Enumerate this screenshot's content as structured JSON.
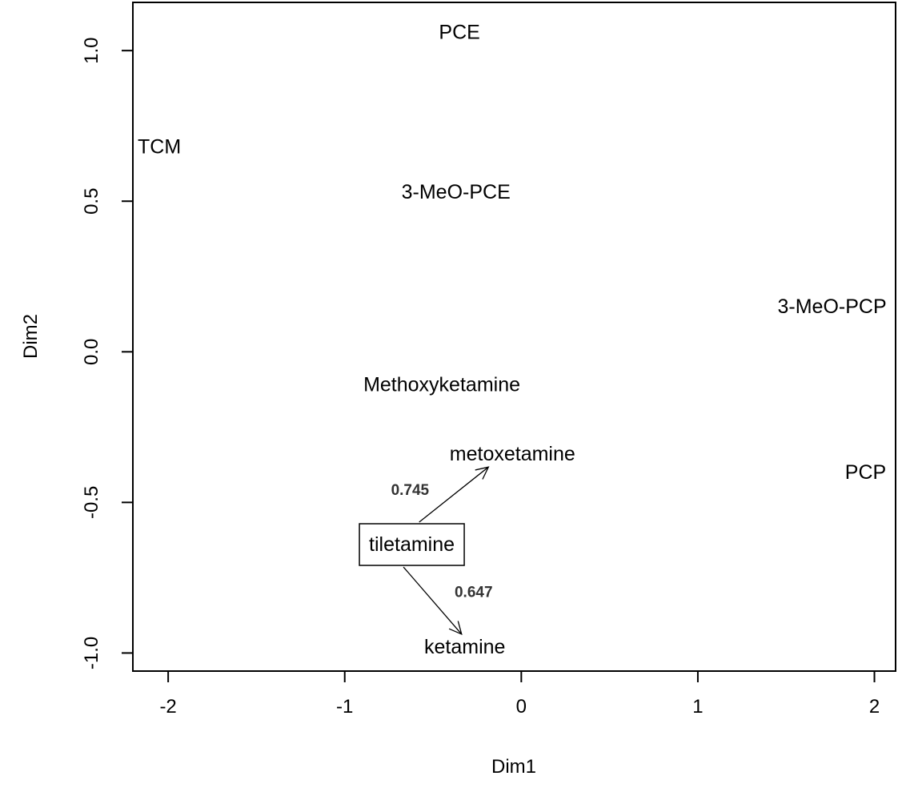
{
  "chart_data": {
    "type": "scatter",
    "xlabel": "Dim1",
    "ylabel": "Dim2",
    "xlim": [
      -2.2,
      2.12
    ],
    "ylim": [
      -1.06,
      1.16
    ],
    "xticks": [
      -2,
      -1,
      0,
      1,
      2
    ],
    "yticks": [
      -1.0,
      -0.5,
      0.0,
      0.5,
      1.0
    ],
    "ytick_labels": [
      "-1.0",
      "-0.5",
      "0.0",
      "0.5",
      "1.0"
    ],
    "grid": false,
    "points": [
      {
        "label": "PCE",
        "x": -0.35,
        "y": 1.06
      },
      {
        "label": "TCM",
        "x": -2.05,
        "y": 0.68
      },
      {
        "label": "3-MeO-PCE",
        "x": -0.37,
        "y": 0.53
      },
      {
        "label": "3-MeO-PCP",
        "x": 1.76,
        "y": 0.15
      },
      {
        "label": "Methoxyketamine",
        "x": -0.45,
        "y": -0.11
      },
      {
        "label": "metoxetamine",
        "x": -0.05,
        "y": -0.34
      },
      {
        "label": "PCP",
        "x": 1.95,
        "y": -0.4
      },
      {
        "label": "tiletamine",
        "x": -0.62,
        "y": -0.64,
        "boxed": true
      },
      {
        "label": "ketamine",
        "x": -0.32,
        "y": -0.98
      }
    ],
    "annotations": [
      {
        "text": "0.745",
        "from": "tiletamine",
        "to": "metoxetamine",
        "x": -0.63,
        "y": -0.46
      },
      {
        "text": "0.647",
        "from": "tiletamine",
        "to": "ketamine",
        "x": -0.27,
        "y": -0.8
      }
    ]
  }
}
